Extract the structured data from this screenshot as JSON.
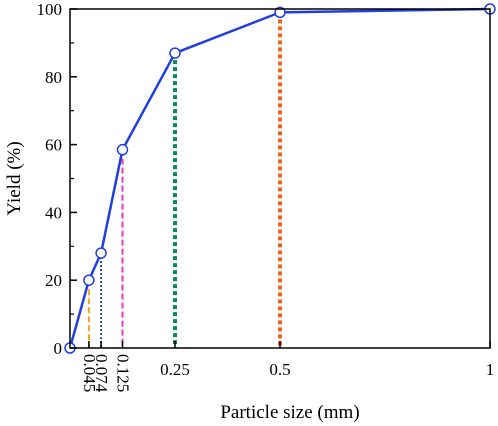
{
  "chart_data": {
    "type": "line",
    "xlabel": "Particle size (mm)",
    "ylabel": "Yield (%)",
    "xlim": [
      0,
      1
    ],
    "ylim": [
      0,
      100
    ],
    "x_ticks": [
      0.045,
      0.074,
      0.125,
      0.25,
      0.5,
      1
    ],
    "x_tick_labels": [
      "0.045",
      "0.074",
      "0.125",
      "0.25",
      "0.5",
      "1"
    ],
    "y_ticks": [
      0,
      20,
      40,
      60,
      80,
      100
    ],
    "y_tick_labels": [
      "0",
      "20",
      "40",
      "60",
      "80",
      "100"
    ],
    "grid": false,
    "series": [
      {
        "color": "#1f3fe0",
        "x": [
          0,
          0.045,
          0.074,
          0.125,
          0.25,
          0.5,
          1
        ],
        "y": [
          0,
          20,
          28,
          58.5,
          87,
          99,
          100
        ]
      }
    ],
    "reference_lines": [
      {
        "x": 0.045,
        "y": 20,
        "color": "#f5a623",
        "style": "dashed"
      },
      {
        "x": 0.074,
        "y": 28,
        "color": "#1a4f6e",
        "style": "dotted"
      },
      {
        "x": 0.125,
        "y": 58.5,
        "color": "#e837c9",
        "style": "dashed"
      },
      {
        "x": 0.25,
        "y": 87,
        "color": "#0a8a5a",
        "style": "dotted"
      },
      {
        "x": 0.5,
        "y": 99,
        "color": "#f06418",
        "style": "dotted"
      }
    ]
  }
}
